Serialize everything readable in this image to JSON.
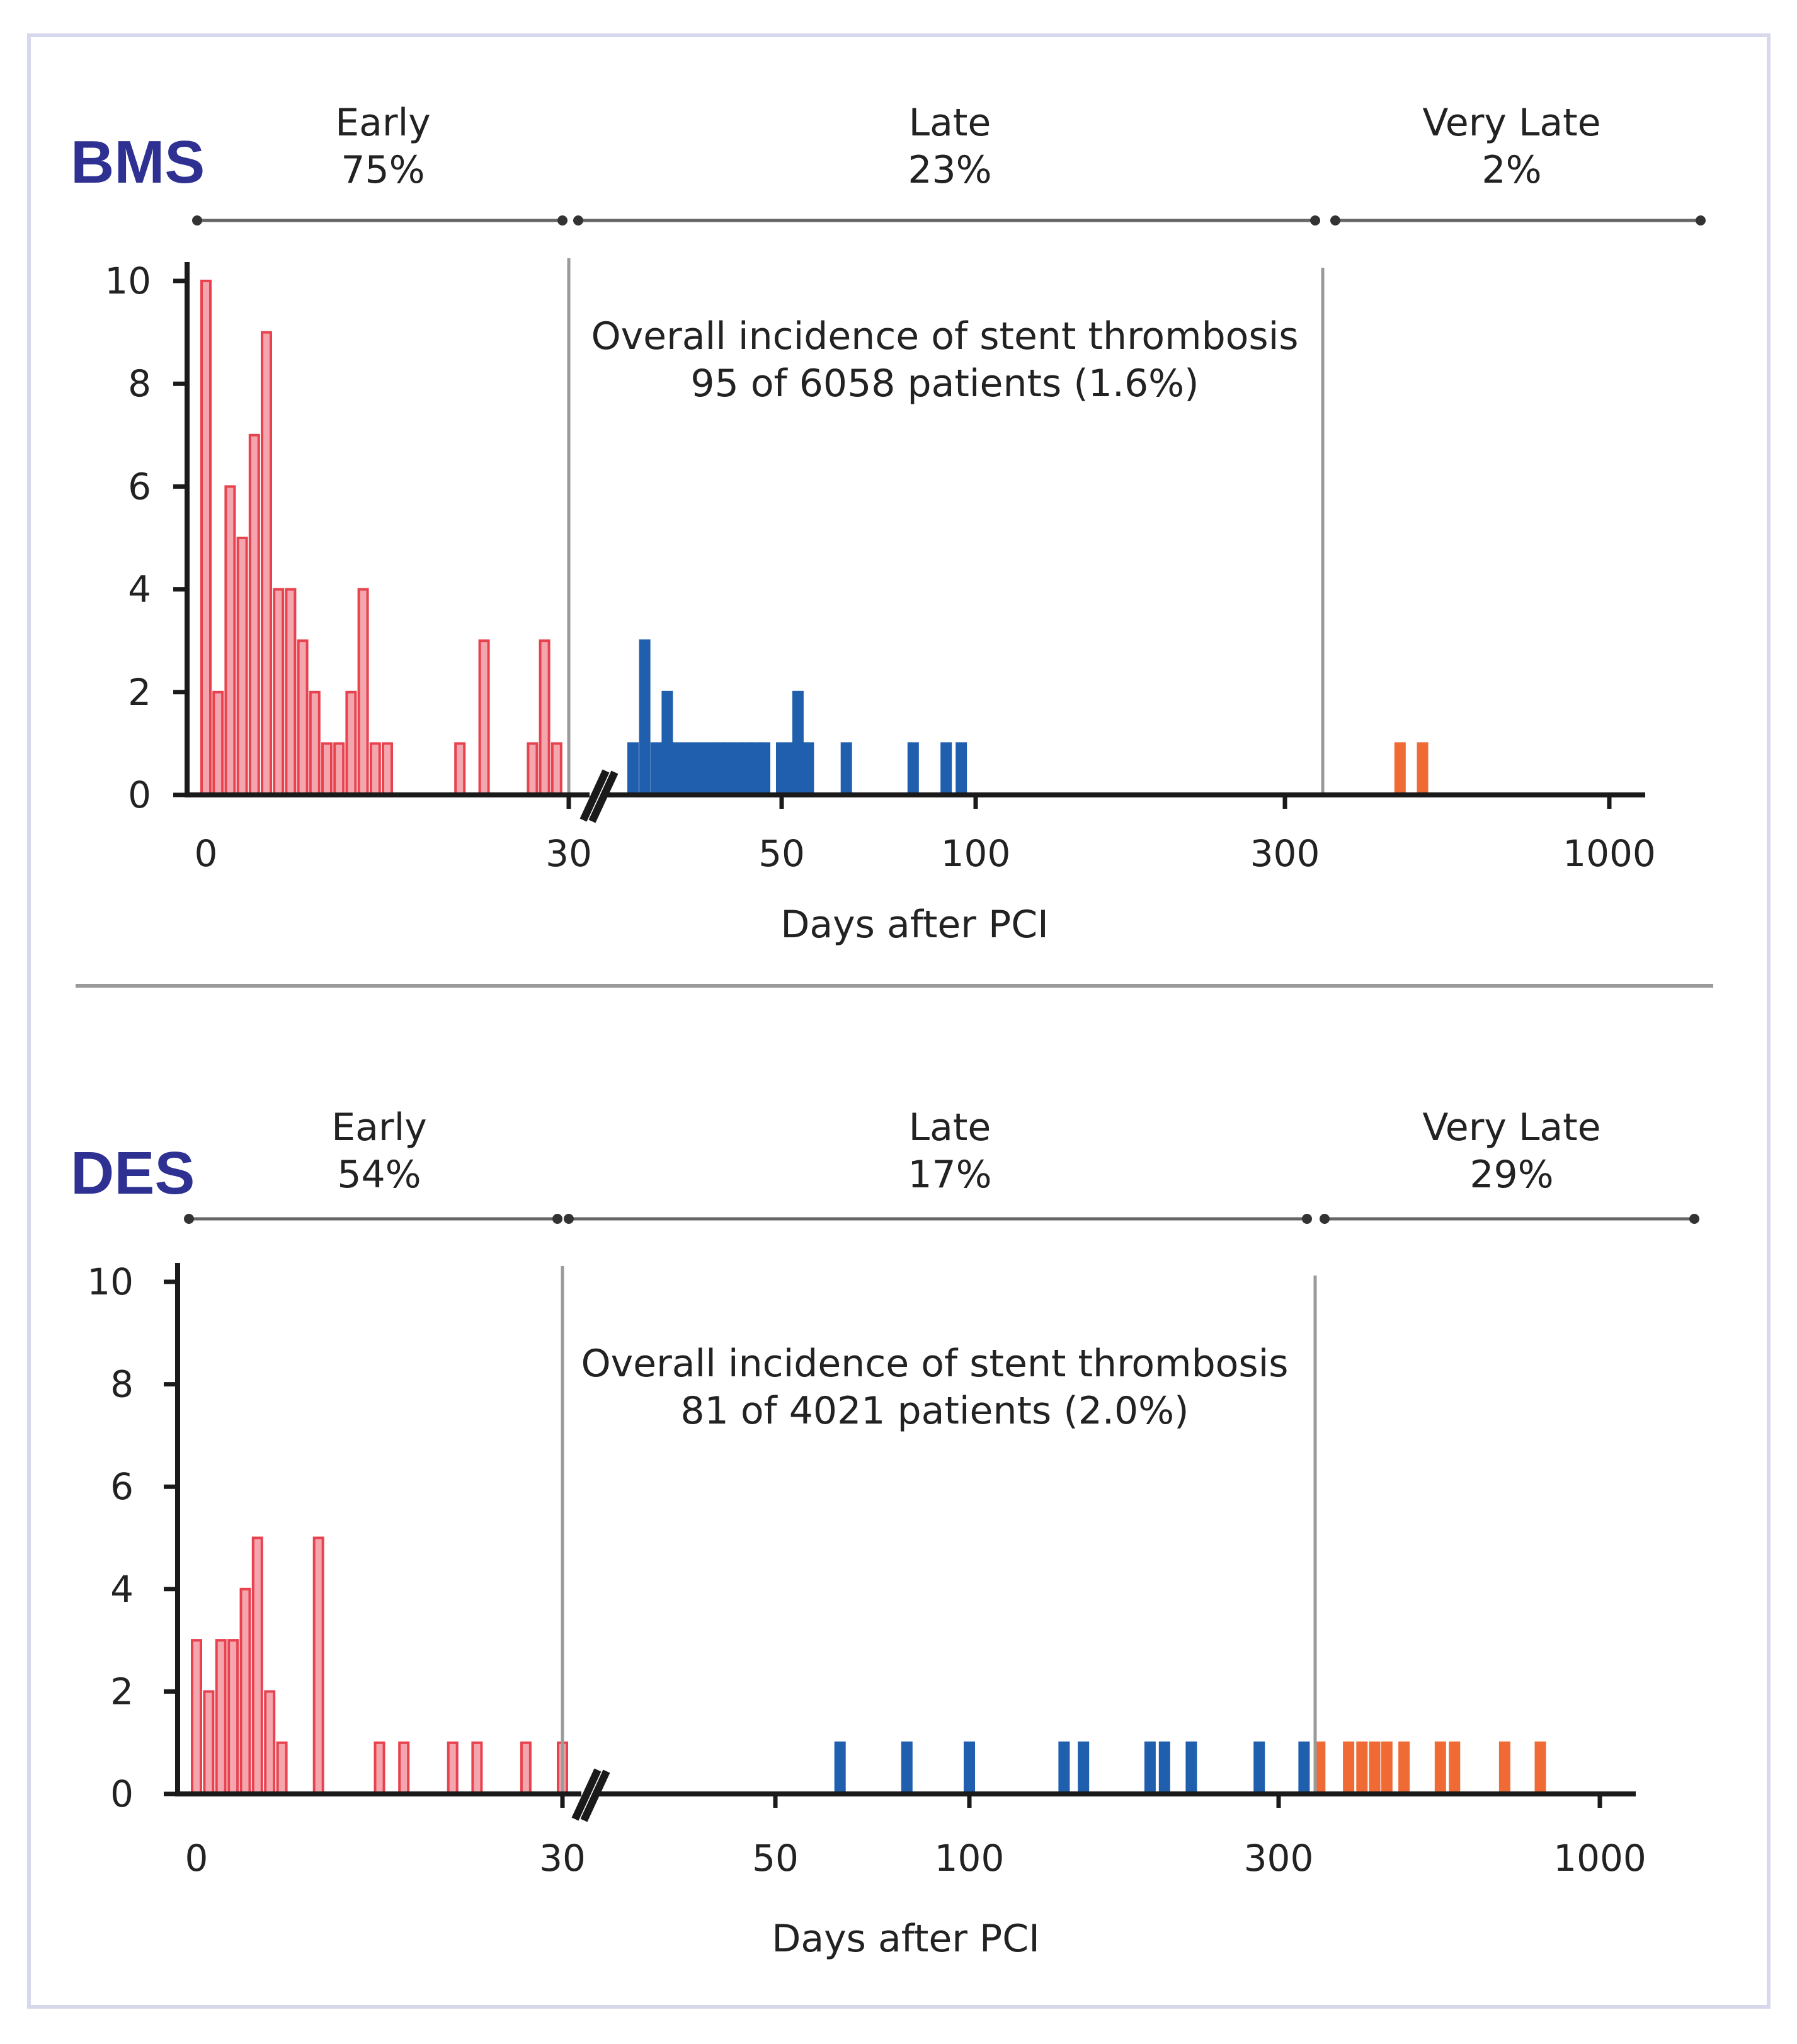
{
  "colors": {
    "early": "#e8424f",
    "early_fill": "#f3a6ad",
    "late": "#1f5fae",
    "very_late": "#f06a35",
    "title": "#2e3192",
    "axis": "#1a1a1a",
    "divider": "#9a9a9a",
    "frame": "#d8d8ec"
  },
  "chart_data": [
    {
      "type": "bar",
      "title": "BMS",
      "periods": [
        {
          "name": "Early",
          "percent": "75%"
        },
        {
          "name": "Late",
          "percent": "23%"
        },
        {
          "name": "Very Late",
          "percent": "2%"
        }
      ],
      "overall_line1": "Overall incidence of stent thrombosis",
      "overall_line2": "95 of 6058 patients (1.6%)",
      "ylim": [
        0,
        10
      ],
      "yticks": [
        "0",
        "2",
        "4",
        "6",
        "8",
        "10"
      ],
      "xticks": [
        {
          "label": "0",
          "day": 0
        },
        {
          "label": "30",
          "day": 30
        },
        {
          "label": "50",
          "day": 50
        },
        {
          "label": "100",
          "day": 100
        },
        {
          "label": "300",
          "day": 300
        },
        {
          "label": "1000",
          "day": 1000
        }
      ],
      "xlabel": "Days after PCI",
      "ylabel": "",
      "series": [
        {
          "name": "Early",
          "color_key": "early",
          "days": [
            0,
            1,
            2,
            3,
            4,
            5,
            6,
            7,
            8,
            9,
            10,
            11,
            12,
            13,
            14,
            15,
            16,
            17,
            18,
            21,
            23,
            27,
            28,
            29
          ],
          "values": [
            10,
            2,
            6,
            5,
            7,
            9,
            4,
            4,
            3,
            2,
            1,
            1,
            2,
            4,
            1,
            1,
            0,
            0,
            0,
            1,
            3,
            1,
            3,
            1
          ]
        },
        {
          "name": "Late",
          "color_key": "late",
          "days": [
            35,
            36,
            37,
            38,
            39,
            40,
            41,
            42,
            43,
            44,
            45,
            46,
            47,
            48,
            50,
            52,
            53,
            55,
            63,
            80,
            90,
            95
          ],
          "values": [
            1,
            3,
            1,
            2,
            1,
            1,
            1,
            1,
            1,
            1,
            1,
            1,
            1,
            1,
            1,
            1,
            2,
            1,
            1,
            1,
            1,
            1
          ]
        },
        {
          "name": "Very Late",
          "color_key": "very_late",
          "days": [
            460,
            500
          ],
          "values": [
            1,
            1
          ]
        }
      ]
    },
    {
      "type": "bar",
      "title": "DES",
      "periods": [
        {
          "name": "Early",
          "percent": "54%"
        },
        {
          "name": "Late",
          "percent": "17%"
        },
        {
          "name": "Very Late",
          "percent": "29%"
        }
      ],
      "overall_line1": "Overall incidence of stent thrombosis",
      "overall_line2": "81 of 4021 patients (2.0%)",
      "ylim": [
        0,
        10
      ],
      "yticks": [
        "0",
        "2",
        "4",
        "6",
        "8",
        "10"
      ],
      "xticks": [
        {
          "label": "0",
          "day": 0
        },
        {
          "label": "30",
          "day": 30
        },
        {
          "label": "50",
          "day": 50
        },
        {
          "label": "100",
          "day": 100
        },
        {
          "label": "300",
          "day": 300
        },
        {
          "label": "1000",
          "day": 1000
        }
      ],
      "xlabel": "Days after PCI",
      "ylabel": "",
      "series": [
        {
          "name": "Early",
          "color_key": "early",
          "days": [
            0,
            1,
            2,
            3,
            4,
            5,
            6,
            7,
            8,
            10,
            15,
            17,
            21,
            23,
            27,
            30
          ],
          "values": [
            3,
            2,
            3,
            3,
            4,
            5,
            2,
            1,
            0,
            5,
            1,
            1,
            1,
            1,
            1,
            1
          ]
        },
        {
          "name": "Late",
          "color_key": "late",
          "days": [
            63,
            80,
            100,
            140,
            150,
            190,
            200,
            220,
            280,
            330
          ],
          "values": [
            1,
            1,
            1,
            1,
            1,
            1,
            1,
            1,
            1,
            1
          ]
        },
        {
          "name": "Very Late",
          "color_key": "very_late",
          "days": [
            350,
            390,
            410,
            430,
            450,
            480,
            550,
            580,
            700,
            800
          ],
          "values": [
            1,
            1,
            1,
            1,
            1,
            1,
            1,
            1,
            1,
            1
          ]
        }
      ]
    }
  ]
}
